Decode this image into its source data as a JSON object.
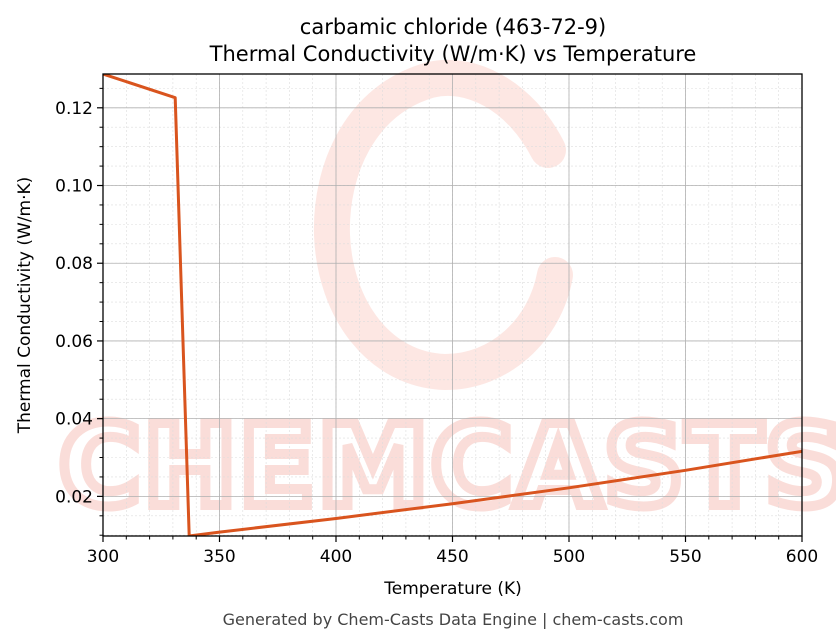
{
  "chart_data": {
    "type": "line",
    "title": "carbamic chloride (463-72-9)",
    "subtitle": "Thermal Conductivity (W/m·K) vs Temperature",
    "xlabel": "Temperature (K)",
    "ylabel": "Thermal Conductivity (W/m·K)",
    "xlim": [
      300,
      600
    ],
    "ylim": [
      0.0098,
      0.1287
    ],
    "xticks": [
      300,
      350,
      400,
      450,
      500,
      550,
      600
    ],
    "xtick_labels": [
      "300",
      "350",
      "400",
      "450",
      "500",
      "550",
      "600"
    ],
    "yticks": [
      0.02,
      0.04,
      0.06,
      0.08,
      0.1,
      0.12
    ],
    "ytick_labels": [
      "0.02",
      "0.04",
      "0.06",
      "0.08",
      "0.10",
      "0.12"
    ],
    "grid": true,
    "series": [
      {
        "color": "#d9541e",
        "x": [
          300,
          331,
          337,
          350,
          400,
          450,
          500,
          550,
          600
        ],
        "y": [
          0.1287,
          0.1226,
          0.0098,
          0.0108,
          0.0143,
          0.0181,
          0.0222,
          0.0267,
          0.0316
        ]
      }
    ]
  },
  "watermark": "CHEMCASTS",
  "footer": "Generated by Chem-Casts Data Engine | chem-casts.com"
}
